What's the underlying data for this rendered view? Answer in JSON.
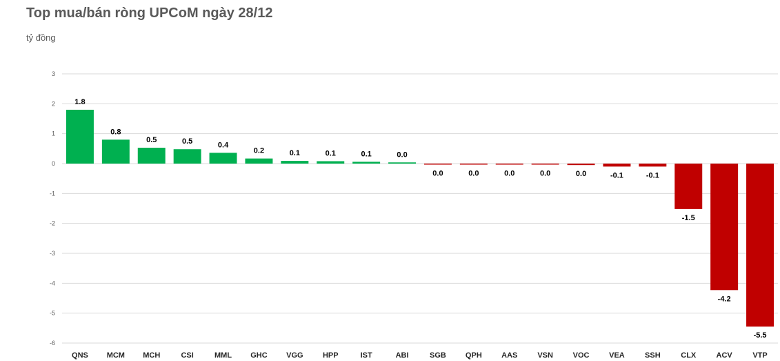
{
  "chart_data": {
    "type": "bar",
    "title": "Top mua/bán ròng UPCoM ngày 28/12",
    "unit_label": "tỷ đồng",
    "categories": [
      "QNS",
      "MCM",
      "MCH",
      "CSI",
      "MML",
      "GHC",
      "VGG",
      "HPP",
      "IST",
      "ABI",
      "SGB",
      "QPH",
      "AAS",
      "VSN",
      "VOC",
      "VEA",
      "SSH",
      "CLX",
      "ACV",
      "VTP"
    ],
    "values": [
      1.8,
      0.8,
      0.53,
      0.48,
      0.36,
      0.17,
      0.09,
      0.08,
      0.06,
      0.04,
      -0.03,
      -0.03,
      -0.03,
      -0.03,
      -0.05,
      -0.1,
      -0.1,
      -1.52,
      -4.23,
      -5.45
    ],
    "data_labels": [
      "1.8",
      "0.8",
      "0.5",
      "0.5",
      "0.4",
      "0.2",
      "0.1",
      "0.1",
      "0.1",
      "0.0",
      "0.0",
      "0.0",
      "0.0",
      "0.0",
      "0.0",
      "-0.1",
      "-0.1",
      "-1.5",
      "-4.2",
      "-5.5"
    ],
    "y_ticks": [
      3,
      2,
      1,
      0,
      -1,
      -2,
      -3,
      -4,
      -5,
      -6
    ],
    "y_tick_labels": [
      "3",
      "2",
      "1",
      "0",
      "-1",
      "-2",
      "-3",
      "-4",
      "-5",
      "-6"
    ],
    "ylim": [
      -6,
      3
    ],
    "grid": true,
    "legend": "none",
    "colors": {
      "positive": "#00B050",
      "negative": "#C00000",
      "grid": "#D9D9D9"
    }
  }
}
